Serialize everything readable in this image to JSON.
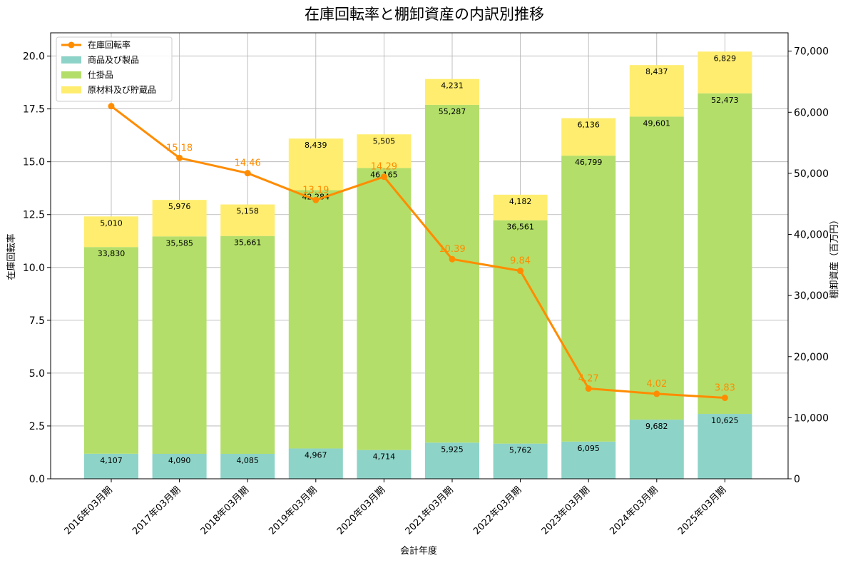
{
  "chart_data": {
    "type": "bar",
    "subtype": "stacked-bar-with-line",
    "title": "在庫回転率と棚卸資産の内訳別推移",
    "xlabel": "会計年度",
    "ylabel": "在庫回転率",
    "ylabel_right": "棚卸資産（百万円）",
    "categories": [
      "2016年03月期",
      "2017年03月期",
      "2018年03月期",
      "2019年03月期",
      "2020年03月期",
      "2021年03月期",
      "2022年03月期",
      "2023年03月期",
      "2024年03月期",
      "2025年03月期"
    ],
    "ylim_left": [
      0,
      21.1
    ],
    "ylim_right": [
      0,
      73000
    ],
    "yticks_left": [
      "0.0",
      "2.5",
      "5.0",
      "7.5",
      "10.0",
      "12.5",
      "15.0",
      "17.5",
      "20.0"
    ],
    "yticks_right": [
      "0",
      "10,000",
      "20,000",
      "30,000",
      "40,000",
      "50,000",
      "60,000",
      "70,000"
    ],
    "grid": true,
    "legend_position": "top-left",
    "series": [
      {
        "name": "商品及び製品",
        "axis": "right",
        "kind": "bar",
        "color": "#8dd3c7",
        "values": [
          4107,
          4090,
          4085,
          4967,
          4714,
          5925,
          5762,
          6095,
          9682,
          10625
        ],
        "labels": [
          "4,107",
          "4,090",
          "4,085",
          "4,967",
          "4,714",
          "5,925",
          "5,762",
          "6,095",
          "9,682",
          "10,625"
        ]
      },
      {
        "name": "仕掛品",
        "axis": "right",
        "kind": "bar",
        "color": "#b3de69",
        "values": [
          33830,
          35585,
          35661,
          42284,
          46165,
          55287,
          36561,
          46799,
          49601,
          52473
        ],
        "labels": [
          "33,830",
          "35,585",
          "35,661",
          "42,284",
          "46,165",
          "55,287",
          "36,561",
          "46,799",
          "49,601",
          "52,473"
        ]
      },
      {
        "name": "原材料及び貯蔵品",
        "axis": "right",
        "kind": "bar",
        "color": "#ffed6f",
        "values": [
          5010,
          5976,
          5158,
          8439,
          5505,
          4231,
          4182,
          6136,
          8437,
          6829
        ],
        "labels": [
          "5,010",
          "5,976",
          "5,158",
          "8,439",
          "5,505",
          "4,231",
          "4,182",
          "6,136",
          "8,437",
          "6,829"
        ]
      },
      {
        "name": "在庫回転率",
        "axis": "left",
        "kind": "line",
        "color": "#ff8c00",
        "values": [
          17.63,
          15.18,
          14.46,
          13.19,
          14.29,
          10.39,
          9.84,
          4.27,
          4.02,
          3.83
        ],
        "labels": [
          "",
          "15.18",
          "14.46",
          "13.19",
          "14.29",
          "10.39",
          "9.84",
          "4.27",
          "4.02",
          "3.83"
        ]
      }
    ]
  }
}
